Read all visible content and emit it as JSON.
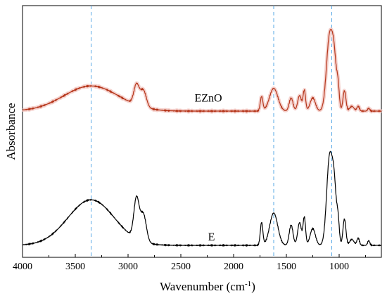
{
  "chart_data": {
    "type": "line",
    "title": "",
    "xlabel": "Wavenumber (cm",
    "xlabel_sup": "-1",
    "xlabel_close": ")",
    "ylabel": "Absorbance",
    "xlim": [
      4000,
      600
    ],
    "x_reversed": true,
    "xticks": [
      4000,
      3500,
      3000,
      2500,
      2000,
      1500,
      1000
    ],
    "y_ticks_shown": false,
    "grid": false,
    "reference_lines": [
      3350,
      1620,
      1070
    ],
    "reference_line_color": "#5aa9e6",
    "series": [
      {
        "name": "EZnO",
        "color": "#b5371c",
        "band_color": "#f3c7c2",
        "baseline": 0.56,
        "peaks": [
          [
            3350,
            0.105,
            260
          ],
          [
            2920,
            0.085,
            25
          ],
          [
            2855,
            0.07,
            28
          ],
          [
            1735,
            0.06,
            12
          ],
          [
            1620,
            0.095,
            40
          ],
          [
            1455,
            0.055,
            18
          ],
          [
            1375,
            0.065,
            18
          ],
          [
            1330,
            0.085,
            12
          ],
          [
            1250,
            0.055,
            25
          ],
          [
            1090,
            0.31,
            30
          ],
          [
            1045,
            0.17,
            22
          ],
          [
            1010,
            0.08,
            12
          ],
          [
            950,
            0.085,
            14
          ],
          [
            880,
            0.02,
            20
          ],
          [
            820,
            0.02,
            12
          ],
          [
            720,
            0.012,
            10
          ]
        ]
      },
      {
        "name": "E",
        "color": "#000000",
        "band_color": "",
        "baseline": 0.0,
        "peaks": [
          [
            3350,
            0.19,
            220
          ],
          [
            2920,
            0.17,
            25
          ],
          [
            2855,
            0.115,
            28
          ],
          [
            1735,
            0.095,
            12
          ],
          [
            1620,
            0.135,
            38
          ],
          [
            1455,
            0.085,
            18
          ],
          [
            1375,
            0.095,
            18
          ],
          [
            1330,
            0.115,
            12
          ],
          [
            1250,
            0.07,
            25
          ],
          [
            1090,
            0.37,
            28
          ],
          [
            1045,
            0.2,
            20
          ],
          [
            1010,
            0.09,
            12
          ],
          [
            950,
            0.11,
            14
          ],
          [
            880,
            0.025,
            20
          ],
          [
            820,
            0.03,
            12
          ],
          [
            720,
            0.02,
            10
          ]
        ]
      }
    ],
    "series_labels": [
      {
        "text": "EZnO",
        "x": 2240,
        "y": 0.6
      },
      {
        "text": "E",
        "x": 2210,
        "y": 0.02
      }
    ],
    "ylim": [
      -0.05,
      1.0
    ]
  }
}
